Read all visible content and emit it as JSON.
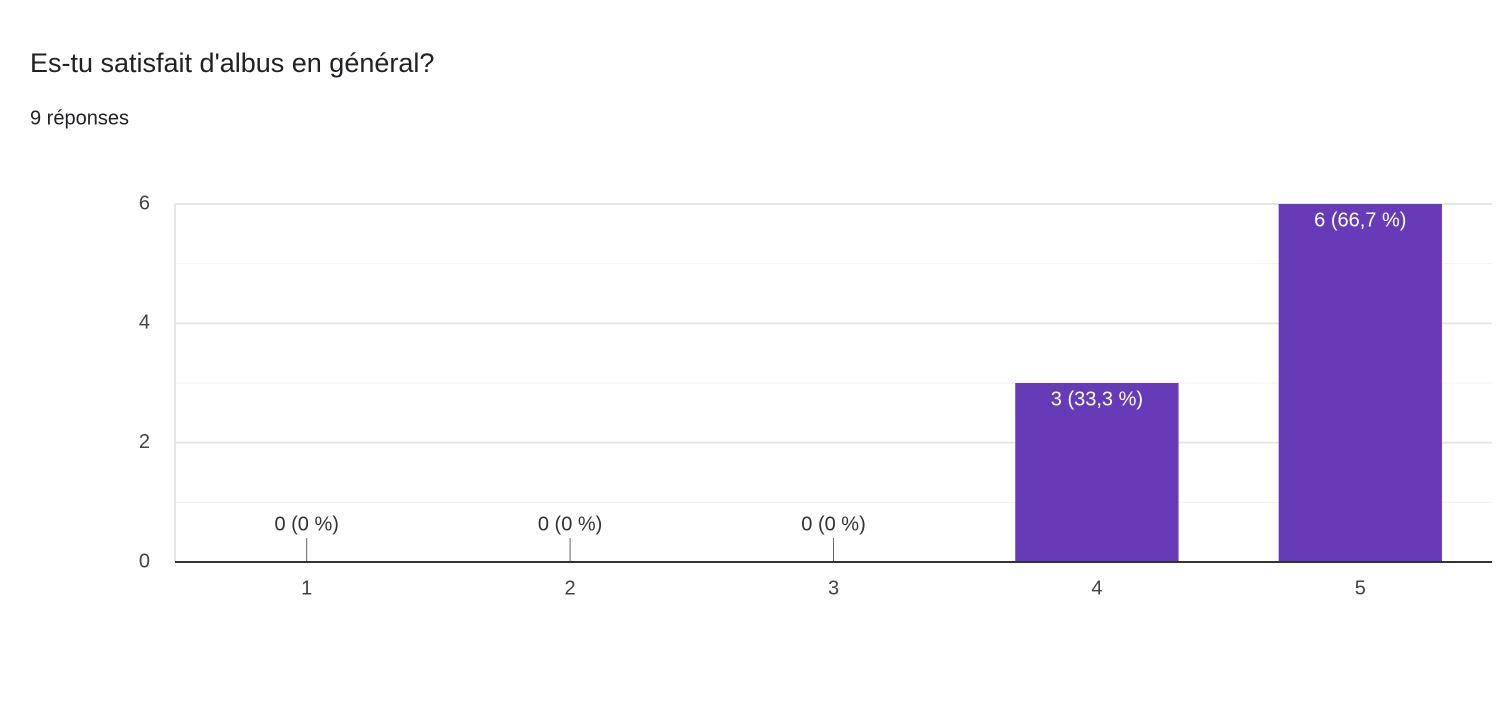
{
  "chart_data": {
    "type": "bar",
    "title": "Es-tu satisfait d'albus en général?",
    "subtitle": "9 réponses",
    "categories": [
      "1",
      "2",
      "3",
      "4",
      "5"
    ],
    "values": [
      0,
      0,
      0,
      3,
      6
    ],
    "value_labels": [
      "0 (0 %)",
      "0 (0 %)",
      "0 (0 %)",
      "3 (33,3 %)",
      "6 (66,7 %)"
    ],
    "color": "#673ab7",
    "ylim": [
      0,
      6
    ],
    "yticks": [
      0,
      2,
      4,
      6
    ],
    "minor_yticks": [
      1,
      3,
      5
    ],
    "grid": true
  }
}
